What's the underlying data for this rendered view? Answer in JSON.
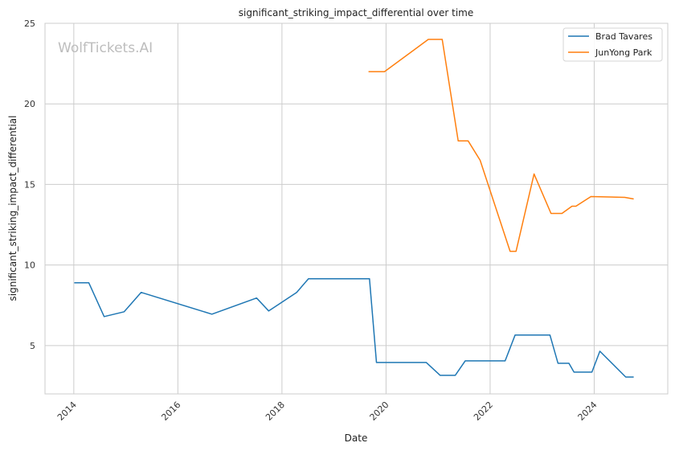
{
  "watermark": "WolfTickets.AI",
  "chart_data": {
    "type": "line",
    "title": "significant_striking_impact_differential over time",
    "xlabel": "Date",
    "ylabel": "significant_striking_impact_differential",
    "xlim": [
      "2013-06-13",
      "2025-06-01"
    ],
    "ylim": [
      2,
      25
    ],
    "x_ticks": [
      "2014",
      "2016",
      "2018",
      "2020",
      "2022",
      "2024"
    ],
    "y_ticks": [
      5,
      10,
      15,
      20,
      25
    ],
    "grid": true,
    "legend_position": "top-right",
    "series": [
      {
        "name": "Brad Tavares",
        "color": "#1f77b4",
        "points": [
          [
            "2014-01-04",
            8.9
          ],
          [
            "2014-04-16",
            8.9
          ],
          [
            "2014-08-02",
            6.8
          ],
          [
            "2014-12-20",
            7.1
          ],
          [
            "2015-04-18",
            8.3
          ],
          [
            "2016-08-27",
            6.95
          ],
          [
            "2017-07-07",
            7.95
          ],
          [
            "2017-09-30",
            7.15
          ],
          [
            "2018-04-14",
            8.3
          ],
          [
            "2018-07-06",
            9.15
          ],
          [
            "2019-09-07",
            9.15
          ],
          [
            "2019-10-26",
            3.95
          ],
          [
            "2020-10-10",
            3.95
          ],
          [
            "2021-01-16",
            3.15
          ],
          [
            "2021-05-01",
            3.15
          ],
          [
            "2021-07-10",
            4.05
          ],
          [
            "2022-04-16",
            4.05
          ],
          [
            "2022-06-25",
            5.65
          ],
          [
            "2023-02-25",
            5.65
          ],
          [
            "2023-04-22",
            3.9
          ],
          [
            "2023-07-08",
            3.9
          ],
          [
            "2023-08-12",
            3.35
          ],
          [
            "2023-12-16",
            3.35
          ],
          [
            "2024-02-10",
            4.65
          ],
          [
            "2024-08-10",
            3.05
          ],
          [
            "2024-10-05",
            3.05
          ]
        ]
      },
      {
        "name": "JunYong Park",
        "color": "#ff7f0e",
        "points": [
          [
            "2019-08-31",
            22.0
          ],
          [
            "2019-12-21",
            22.0
          ],
          [
            "2020-10-24",
            24.0
          ],
          [
            "2021-01-30",
            24.0
          ],
          [
            "2021-05-22",
            17.7
          ],
          [
            "2021-07-31",
            17.7
          ],
          [
            "2021-10-23",
            16.5
          ],
          [
            "2022-05-21",
            10.85
          ],
          [
            "2022-07-02",
            10.85
          ],
          [
            "2022-11-05",
            15.65
          ],
          [
            "2023-03-04",
            13.2
          ],
          [
            "2023-05-20",
            13.2
          ],
          [
            "2023-07-29",
            13.65
          ],
          [
            "2023-08-26",
            13.65
          ],
          [
            "2023-12-09",
            14.25
          ],
          [
            "2024-08-03",
            14.2
          ],
          [
            "2024-10-05",
            14.1
          ]
        ]
      }
    ]
  }
}
